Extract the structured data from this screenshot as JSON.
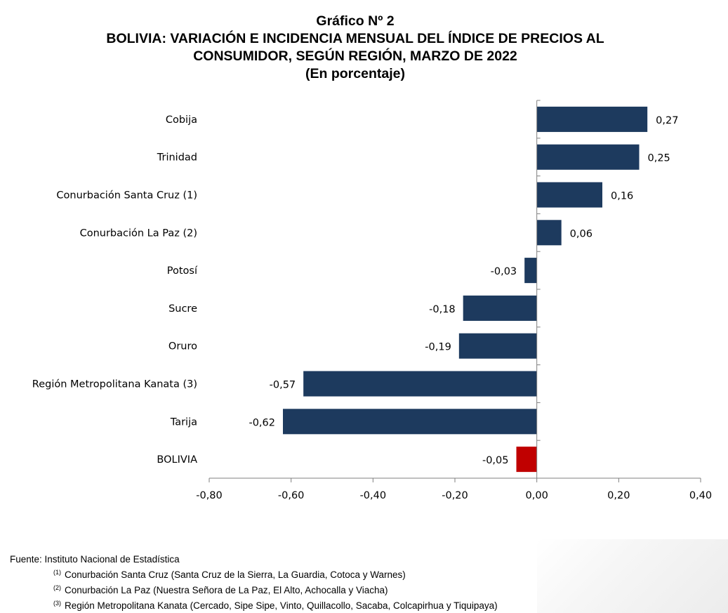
{
  "title": {
    "line1": "Gráfico Nº 2",
    "line2": "BOLIVIA: VARIACIÓN E INCIDENCIA MENSUAL DEL ÍNDICE DE PRECIOS AL",
    "line3": "CONSUMIDOR, SEGÚN REGIÓN, MARZO DE 2022",
    "line4": "(En porcentaje)"
  },
  "chart_data": {
    "type": "bar",
    "orientation": "horizontal",
    "categories": [
      "Cobija",
      "Trinidad",
      "Conurbación Santa Cruz (1)",
      "Conurbación La Paz (2)",
      "Potosí",
      "Sucre",
      "Oruro",
      "Región Metropolitana Kanata (3)",
      "Tarija",
      "BOLIVIA"
    ],
    "values": [
      0.27,
      0.25,
      0.16,
      0.06,
      -0.03,
      -0.18,
      -0.19,
      -0.57,
      -0.62,
      -0.05
    ],
    "value_labels": [
      "0,27",
      "0,25",
      "0,16",
      "0,06",
      "-0,03",
      "-0,18",
      "-0,19",
      "-0,57",
      "-0,62",
      "-0,05"
    ],
    "colors": [
      "#1d3a5e",
      "#1d3a5e",
      "#1d3a5e",
      "#1d3a5e",
      "#1d3a5e",
      "#1d3a5e",
      "#1d3a5e",
      "#1d3a5e",
      "#1d3a5e",
      "#c00000"
    ],
    "xlim": [
      -0.8,
      0.4
    ],
    "xticks": [
      -0.8,
      -0.6,
      -0.4,
      -0.2,
      0.0,
      0.2,
      0.4
    ],
    "xtick_labels": [
      "-0,80",
      "-0,60",
      "-0,40",
      "-0,20",
      "0,00",
      "0,20",
      "0,40"
    ],
    "grid": false,
    "legend": "none"
  },
  "footnotes": {
    "source": "Fuente: Instituto Nacional de Estadística",
    "notes": [
      {
        "marker": "(1)",
        "text": "Conurbación Santa Cruz (Santa Cruz de la Sierra, La Guardia, Cotoca y Warnes)"
      },
      {
        "marker": "(2)",
        "text": "Conurbación La Paz (Nuestra Señora de La Paz, El Alto, Achocalla y Viacha)"
      },
      {
        "marker": "(3)",
        "text": "Región Metropolitana Kanata (Cercado, Sipe Sipe, Vinto, Quillacollo, Sacaba, Colcapirhua y Tiquipaya)"
      }
    ]
  }
}
